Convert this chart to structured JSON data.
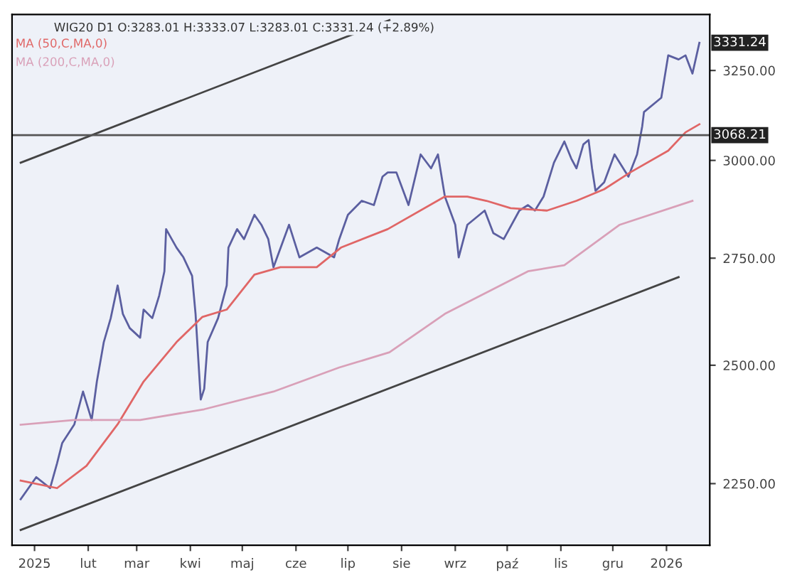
{
  "chart_data": {
    "type": "line",
    "title": "WIG20 D1 O:3283.01 H:3333.07 L:3283.01 C:3331.24 (+2.89%)",
    "series": [
      {
        "name": null,
        "color": "#5b5fa0",
        "x": [
          "2024-12-24",
          "2025-01-02",
          "2025-01-10",
          "2025-01-14",
          "2025-01-17",
          "2025-01-24",
          "2025-01-29",
          "2025-02-03",
          "2025-02-06",
          "2025-02-10",
          "2025-02-14",
          "2025-02-18",
          "2025-02-21",
          "2025-02-25",
          "2025-03-03",
          "2025-03-05",
          "2025-03-10",
          "2025-03-14",
          "2025-03-17",
          "2025-03-18",
          "2025-03-24",
          "2025-03-28",
          "2025-04-02",
          "2025-04-04",
          "2025-04-07",
          "2025-04-09",
          "2025-04-11",
          "2025-04-17",
          "2025-04-22",
          "2025-04-23",
          "2025-04-28",
          "2025-05-02",
          "2025-05-08",
          "2025-05-12",
          "2025-05-16",
          "2025-05-19",
          "2025-05-28",
          "2025-06-03",
          "2025-06-13",
          "2025-06-23",
          "2025-06-26",
          "2025-07-01",
          "2025-07-09",
          "2025-07-16",
          "2025-07-21",
          "2025-07-24",
          "2025-07-29",
          "2025-08-05",
          "2025-08-12",
          "2025-08-18",
          "2025-08-22",
          "2025-08-26",
          "2025-09-01",
          "2025-09-03",
          "2025-09-08",
          "2025-09-18",
          "2025-09-23",
          "2025-09-29",
          "2025-10-08",
          "2025-10-13",
          "2025-10-17",
          "2025-10-22",
          "2025-10-28",
          "2025-11-03",
          "2025-11-07",
          "2025-11-10",
          "2025-11-14",
          "2025-11-17",
          "2025-11-19",
          "2025-11-21",
          "2025-11-26",
          "2025-12-02",
          "2025-12-10",
          "2025-12-15",
          "2025-12-18",
          "2025-12-19",
          "2025-12-29",
          "2026-01-02",
          "2026-01-08",
          "2026-01-12",
          "2026-01-16",
          "2026-01-20"
        ],
        "values": [
          2219,
          2263,
          2241,
          2291,
          2333,
          2372,
          2442,
          2381,
          2464,
          2552,
          2607,
          2684,
          2617,
          2584,
          2562,
          2627,
          2607,
          2660,
          2718,
          2822,
          2776,
          2752,
          2707,
          2617,
          2425,
          2448,
          2552,
          2607,
          2684,
          2776,
          2822,
          2797,
          2858,
          2833,
          2797,
          2728,
          2833,
          2752,
          2776,
          2752,
          2797,
          2858,
          2894,
          2883,
          2957,
          2968,
          2968,
          2883,
          3016,
          2979,
          3016,
          2905,
          2833,
          2752,
          2833,
          2869,
          2812,
          2797,
          2869,
          2883,
          2869,
          2905,
          2994,
          3051,
          3005,
          2979,
          3043,
          3055,
          2979,
          2920,
          2942,
          3016,
          2957,
          3016,
          3093,
          3132,
          3172,
          3294,
          3282,
          3294,
          3241,
          3331
        ]
      },
      {
        "name": "MA (50,C,MA,0)",
        "color": "#e06666",
        "x": [
          "2024-12-24",
          "2025-01-14",
          "2025-01-31",
          "2025-02-18",
          "2025-03-05",
          "2025-03-24",
          "2025-04-08",
          "2025-04-22",
          "2025-05-08",
          "2025-05-23",
          "2025-06-13",
          "2025-06-27",
          "2025-07-24",
          "2025-08-26",
          "2025-09-08",
          "2025-09-19",
          "2025-10-03",
          "2025-10-24",
          "2025-11-10",
          "2025-11-26",
          "2025-12-11",
          "2026-01-02",
          "2026-01-12",
          "2026-01-20"
        ],
        "values": [
          2256,
          2241,
          2286,
          2372,
          2464,
          2552,
          2610,
          2627,
          2710,
          2728,
          2728,
          2776,
          2822,
          2905,
          2905,
          2894,
          2875,
          2869,
          2894,
          2924,
          2968,
          3026,
          3076,
          3098
        ]
      },
      {
        "name": "MA (200,C,MA,0)",
        "color": "#d9a0b8",
        "x": [
          "2024-12-24",
          "2025-01-24",
          "2025-03-03",
          "2025-04-09",
          "2025-05-19",
          "2025-06-26",
          "2025-07-25",
          "2025-08-26",
          "2025-10-13",
          "2025-11-03",
          "2025-12-05",
          "2026-01-16"
        ],
        "values": [
          2371,
          2381,
          2381,
          2404,
          2442,
          2495,
          2529,
          2617,
          2718,
          2733,
          2833,
          2894
        ]
      },
      {
        "name": null,
        "color": "#444444",
        "x": [
          "2024-12-24",
          "2025-07-25"
        ],
        "values": [
          2994,
          3399
        ]
      },
      {
        "name": null,
        "color": "#444444",
        "x": [
          "2024-12-24",
          "2026-01-08"
        ],
        "values": [
          2159,
          2704
        ]
      }
    ],
    "log": "y",
    "xlim": [
      "2024-12-19",
      "2026-01-26"
    ],
    "ylim": [
      2130,
      3416
    ],
    "yticks": [
      {
        "value": 2250,
        "label": "2250.00"
      },
      {
        "value": 2500,
        "label": "2500.00"
      },
      {
        "value": 2750,
        "label": "2750.00"
      },
      {
        "value": 3000,
        "label": "3000.00"
      },
      {
        "value": 3250,
        "label": "3250.00"
      }
    ],
    "xticks": [
      {
        "value": "2025-01-01",
        "label": "2025"
      },
      {
        "value": "2025-02-01",
        "label": "lut"
      },
      {
        "value": "2025-03-01",
        "label": "mar"
      },
      {
        "value": "2025-04-01",
        "label": "kwi"
      },
      {
        "value": "2025-05-01",
        "label": "maj"
      },
      {
        "value": "2025-06-01",
        "label": "cze"
      },
      {
        "value": "2025-07-01",
        "label": "lip"
      },
      {
        "value": "2025-08-01",
        "label": "sie"
      },
      {
        "value": "2025-09-01",
        "label": "wrz"
      },
      {
        "value": "2025-10-01",
        "label": "paź"
      },
      {
        "value": "2025-11-01",
        "label": "lis"
      },
      {
        "value": "2025-12-01",
        "label": "gru"
      },
      {
        "value": "2026-01-01",
        "label": "2026"
      }
    ],
    "ref_lines": [
      {
        "axis": "y",
        "value": 3068.21,
        "label": "3068.21",
        "color": "#555555"
      }
    ],
    "annotations": [
      {
        "text": "3331.24",
        "x": "2026-01-20",
        "y": 3331.24
      }
    ],
    "legend": "top left",
    "grid": false
  }
}
